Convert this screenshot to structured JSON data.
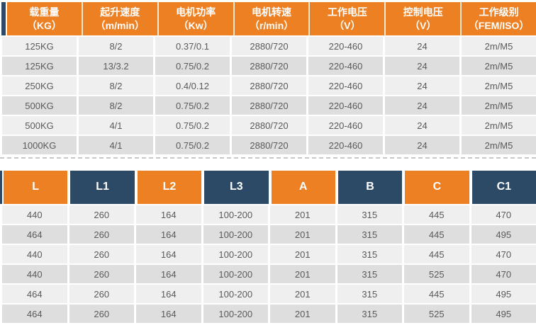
{
  "colors": {
    "orange": "#ED8022",
    "navy": "#2C4A66",
    "row_light": "#EFEFEF",
    "row_dark": "#DEDEDE",
    "cell_text": "#5A5A5A",
    "header_text": "#FFFFFF"
  },
  "tables": [
    {
      "name": "motor-spec-table",
      "columns": [
        {
          "line1": "载重量",
          "line2": "（KG）",
          "color": "orange"
        },
        {
          "line1": "起升速度",
          "line2": "（m/min）",
          "color": "orange"
        },
        {
          "line1": "电机功率",
          "line2": "（Kw）",
          "color": "orange"
        },
        {
          "line1": "电机转速",
          "line2": "（r/min）",
          "color": "orange"
        },
        {
          "line1": "工作电压",
          "line2": "（V）",
          "color": "orange"
        },
        {
          "line1": "控制电压",
          "line2": "（V）",
          "color": "orange"
        },
        {
          "line1": "工作级别",
          "line2": "（FEM/ISO）",
          "color": "orange"
        }
      ],
      "rows": [
        [
          "125KG",
          "8/2",
          "0.37/0.1",
          "2880/720",
          "220-460",
          "24",
          "2m/M5"
        ],
        [
          "125KG",
          "13/3.2",
          "0.75/0.2",
          "2880/720",
          "220-460",
          "24",
          "2m/M5"
        ],
        [
          "250KG",
          "8/2",
          "0.4/0.12",
          "2880/720",
          "220-460",
          "24",
          "2m/M5"
        ],
        [
          "500KG",
          "8/2",
          "0.75/0.2",
          "2880/720",
          "220-460",
          "24",
          "2m/M5"
        ],
        [
          "500KG",
          "4/1",
          "0.75/0.2",
          "2880/720",
          "220-460",
          "24",
          "2m/M5"
        ],
        [
          "1000KG",
          "4/1",
          "0.75/0.2",
          "2880/720",
          "220-460",
          "24",
          "2m/M5"
        ]
      ]
    },
    {
      "name": "dimension-table",
      "columns": [
        {
          "line1": "L",
          "color": "orange"
        },
        {
          "line1": "L1",
          "color": "navy"
        },
        {
          "line1": "L2",
          "color": "orange"
        },
        {
          "line1": "L3",
          "color": "navy"
        },
        {
          "line1": "A",
          "color": "orange"
        },
        {
          "line1": "B",
          "color": "navy"
        },
        {
          "line1": "C",
          "color": "orange"
        },
        {
          "line1": "C1",
          "color": "navy"
        }
      ],
      "rows": [
        [
          "440",
          "260",
          "164",
          "100-200",
          "201",
          "315",
          "445",
          "470"
        ],
        [
          "464",
          "260",
          "164",
          "100-200",
          "201",
          "315",
          "445",
          "495"
        ],
        [
          "440",
          "260",
          "164",
          "100-200",
          "201",
          "315",
          "445",
          "470"
        ],
        [
          "440",
          "260",
          "164",
          "100-200",
          "201",
          "315",
          "525",
          "470"
        ],
        [
          "464",
          "260",
          "164",
          "100-200",
          "201",
          "315",
          "445",
          "495"
        ],
        [
          "464",
          "260",
          "164",
          "100-200",
          "201",
          "315",
          "525",
          "495"
        ]
      ]
    }
  ]
}
